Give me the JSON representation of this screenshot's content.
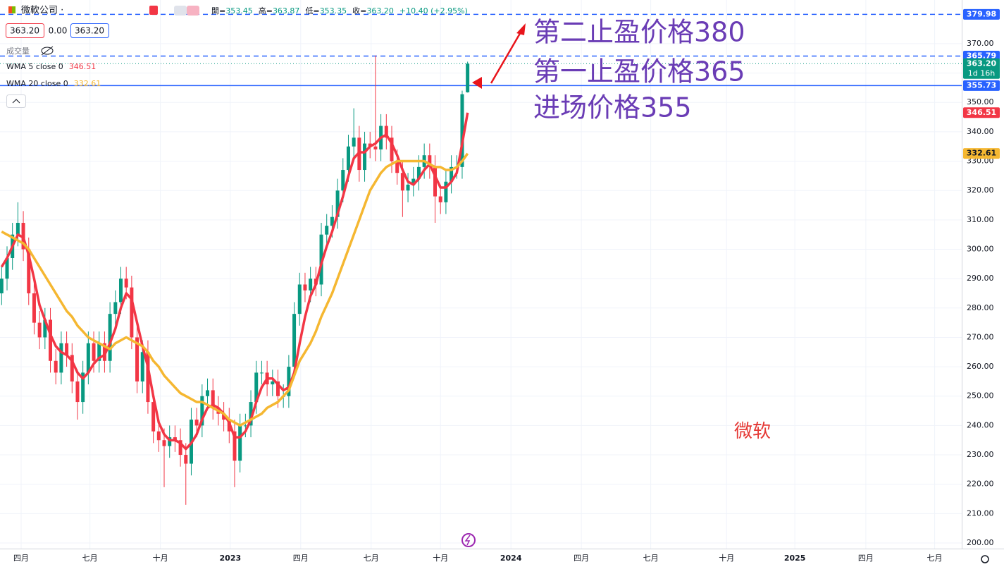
{
  "header": {
    "symbol": "微軟公司 ·",
    "ohlc": [
      {
        "label": "開=",
        "value": "353.45"
      },
      {
        "label": "高=",
        "value": "363.87"
      },
      {
        "label": "低=",
        "value": "353.35"
      },
      {
        "label": "收=",
        "value": "363.20"
      },
      {
        "label": "",
        "value": "+10.40 (+2.95%)"
      }
    ],
    "price_boxes": [
      "363.20",
      "0.00",
      "363.20"
    ],
    "volume_label": "成交量"
  },
  "chart_data": {
    "type": "candlestick",
    "x": [
      -3.6,
      -2.6,
      -1.6,
      -0.6,
      0.4,
      1.4,
      2.4,
      3.4,
      4.4,
      5.4,
      6.4,
      7.4,
      8.4,
      9.4,
      10.4,
      11.4,
      12.4,
      13.4,
      14.4,
      15.4,
      16.4,
      17.4,
      18.4,
      19.4,
      20.4,
      21.4,
      22.4,
      23.4,
      24.4,
      25.4,
      26.4,
      27.4,
      28.4,
      29.4,
      30.4,
      31.4,
      32.4,
      33.4,
      34.4,
      35.4,
      36.4,
      37.4,
      38.4,
      39.4,
      40.4,
      41.4,
      42.4,
      43.4,
      44.4,
      45.4,
      46.4,
      47.4,
      48.4,
      49.4,
      50.4,
      51.4,
      52.4,
      53.4,
      54.4,
      55.4,
      56.4,
      57.4,
      58.4,
      59.4,
      60.4,
      61.4,
      62.4,
      63.4,
      64.4,
      65.4,
      66.4,
      67.4,
      68.4,
      69.4,
      70.4,
      71.4,
      72.4,
      73.4,
      74.4,
      75.4,
      76.4,
      77.4,
      78.4,
      79.4,
      80.4,
      81.4,
      82.4
    ],
    "open": [
      285,
      290,
      297,
      305,
      309,
      300,
      285,
      275,
      270,
      276,
      262,
      258,
      268,
      264,
      255,
      248,
      258,
      268,
      262,
      268,
      262,
      278,
      282,
      290,
      287,
      270,
      255,
      265,
      248,
      238,
      235,
      233,
      236,
      235,
      230,
      227,
      242,
      240,
      250,
      252,
      246,
      244,
      242,
      238,
      228,
      240,
      240,
      248,
      258,
      258,
      254,
      255,
      250,
      250,
      260,
      278,
      288,
      286,
      290,
      288,
      305,
      308,
      311,
      320,
      327,
      335,
      338,
      327,
      336,
      335,
      334,
      342,
      338,
      330,
      326,
      320,
      322,
      324,
      328,
      332,
      328,
      318,
      316,
      323,
      328,
      328,
      353.45
    ],
    "high": [
      294,
      301,
      309,
      316,
      313,
      304,
      289,
      279,
      280,
      280,
      266,
      272,
      272,
      268,
      259,
      262,
      272,
      272,
      272,
      272,
      282,
      286,
      294,
      294,
      291,
      274,
      269,
      269,
      252,
      242,
      239,
      240,
      240,
      239,
      234,
      246,
      246,
      254,
      256,
      256,
      250,
      248,
      246,
      242,
      244,
      244,
      252,
      262,
      262,
      262,
      259,
      259,
      254,
      264,
      282,
      292,
      292,
      294,
      294,
      309,
      312,
      315,
      324,
      331,
      339,
      348,
      342,
      340,
      340,
      366,
      346,
      346,
      342,
      334,
      330,
      326,
      328,
      332,
      336,
      336,
      332,
      322,
      327,
      332,
      332,
      354,
      363.87
    ],
    "low": [
      281,
      286,
      293,
      301,
      296,
      281,
      271,
      266,
      266,
      258,
      254,
      254,
      260,
      251,
      242,
      244,
      254,
      258,
      258,
      258,
      258,
      274,
      278,
      283,
      266,
      251,
      251,
      244,
      234,
      231,
      219,
      229,
      231,
      226,
      213,
      223,
      236,
      236,
      246,
      242,
      240,
      238,
      234,
      219,
      224,
      236,
      236,
      244,
      254,
      250,
      250,
      246,
      246,
      246,
      256,
      274,
      282,
      282,
      284,
      284,
      301,
      304,
      307,
      316,
      323,
      331,
      323,
      323,
      331,
      330,
      330,
      334,
      326,
      322,
      311,
      316,
      318,
      320,
      324,
      324,
      309,
      312,
      312,
      319,
      324,
      324,
      353.35
    ],
    "close": [
      290,
      297,
      305,
      309,
      300,
      285,
      275,
      270,
      276,
      262,
      258,
      268,
      264,
      255,
      248,
      258,
      268,
      262,
      268,
      262,
      278,
      282,
      290,
      287,
      270,
      255,
      265,
      248,
      238,
      235,
      233,
      236,
      235,
      230,
      227,
      242,
      240,
      250,
      252,
      246,
      244,
      242,
      238,
      228,
      240,
      240,
      248,
      258,
      258,
      254,
      255,
      250,
      250,
      260,
      278,
      288,
      286,
      290,
      288,
      305,
      308,
      311,
      320,
      327,
      335,
      338,
      327,
      336,
      335,
      334,
      342,
      338,
      330,
      326,
      320,
      322,
      324,
      328,
      332,
      328,
      318,
      316,
      323,
      328,
      328,
      352.8,
      363.2
    ],
    "up_color": "#089981",
    "down_color": "#f23645",
    "series": [
      {
        "name": "WMA 5 close 0",
        "color": "#f23645",
        "values": [
          294,
          297,
          301,
          305,
          304,
          298,
          290,
          281,
          276,
          271,
          267,
          265,
          264,
          262,
          258,
          256,
          258,
          261,
          263,
          264,
          268,
          273,
          280,
          285,
          283,
          275,
          267,
          260,
          250,
          241,
          237,
          235,
          235,
          234,
          232,
          234,
          237,
          242,
          246,
          247,
          246,
          244,
          241,
          236,
          236,
          238,
          242,
          248,
          253,
          256,
          256,
          254,
          252,
          253,
          258,
          268,
          277,
          284,
          288,
          295,
          301,
          306,
          312,
          318,
          325,
          331,
          333,
          333,
          335,
          336,
          338,
          339,
          336,
          332,
          327,
          323,
          322,
          324,
          327,
          329,
          325,
          321,
          321,
          323,
          326,
          336,
          346.51
        ]
      },
      {
        "name": "WMA 20 close 0",
        "color": "#f5b731",
        "values": [
          306,
          305,
          304,
          303,
          302,
          300,
          297,
          294,
          291,
          288,
          285,
          282,
          279,
          277,
          274,
          272,
          270,
          269,
          268,
          267,
          266,
          268,
          269,
          270,
          269,
          268,
          267,
          265,
          262,
          260,
          257,
          255,
          253,
          251,
          250,
          249,
          248,
          248,
          247,
          246,
          245,
          244,
          242,
          241,
          240,
          241,
          242,
          243,
          244,
          246,
          247,
          248,
          250,
          252,
          257,
          262,
          265,
          268,
          272,
          277,
          281,
          285,
          290,
          295,
          300,
          305,
          310,
          315,
          320,
          323,
          326,
          328,
          329,
          330,
          330,
          330,
          330,
          330,
          330,
          329,
          328,
          328,
          327,
          327,
          328,
          330,
          332.61
        ]
      }
    ],
    "price_line": {
      "value": 363.2,
      "label": "363.20",
      "color": "#089981",
      "countdown": "1d 16h"
    },
    "hlines": [
      {
        "value": 379.98,
        "style": "dashed",
        "color": "#2962ff"
      },
      {
        "value": 365.79,
        "style": "dashed",
        "color": "#2962ff"
      },
      {
        "value": 355.73,
        "style": "solid",
        "color": "#2962ff"
      }
    ],
    "xlim": [
      -3.9,
      173.6
    ],
    "ylim": [
      198.08,
      384.87
    ],
    "xticks": [
      {
        "value": 0,
        "label": "四月"
      },
      {
        "value": 12.7,
        "label": "七月"
      },
      {
        "value": 25.7,
        "label": "十月"
      },
      {
        "value": 38.6,
        "label": "2023"
      },
      {
        "value": 51.6,
        "label": "四月"
      },
      {
        "value": 64.6,
        "label": "七月"
      },
      {
        "value": 77.4,
        "label": "十月"
      },
      {
        "value": 90.4,
        "label": "2024"
      },
      {
        "value": 103.4,
        "label": "四月"
      },
      {
        "value": 116.2,
        "label": "七月"
      },
      {
        "value": 130.2,
        "label": "十月"
      },
      {
        "value": 142.8,
        "label": "2025"
      },
      {
        "value": 155.9,
        "label": "四月"
      },
      {
        "value": 168.6,
        "label": "七月"
      }
    ],
    "yticks": [
      {
        "value": 200,
        "label": "200.00"
      },
      {
        "value": 210,
        "label": "210.00"
      },
      {
        "value": 220,
        "label": "220.00"
      },
      {
        "value": 230,
        "label": "230.00"
      },
      {
        "value": 240,
        "label": "240.00"
      },
      {
        "value": 250,
        "label": "250.00"
      },
      {
        "value": 260,
        "label": "260.00"
      },
      {
        "value": 270,
        "label": "270.00"
      },
      {
        "value": 280,
        "label": "280.00"
      },
      {
        "value": 290,
        "label": "290.00"
      },
      {
        "value": 300,
        "label": "300.00"
      },
      {
        "value": 310,
        "label": "310.00"
      },
      {
        "value": 320,
        "label": "320.00"
      },
      {
        "value": 330,
        "label": "330.00"
      },
      {
        "value": 340,
        "label": "340.00"
      },
      {
        "value": 350,
        "label": "350.00"
      },
      {
        "value": 360,
        "label": "360.00"
      },
      {
        "value": 370,
        "label": "370.00"
      }
    ],
    "grid": true,
    "annotations": [
      {
        "text": "第二止盈价格380",
        "color": "#6a3cb5"
      },
      {
        "text": "第一止盈价格365",
        "color": "#6a3cb5"
      },
      {
        "text": "进场价格355",
        "color": "#6a3cb5"
      },
      {
        "text": "微软",
        "color": "#e53935"
      }
    ]
  }
}
